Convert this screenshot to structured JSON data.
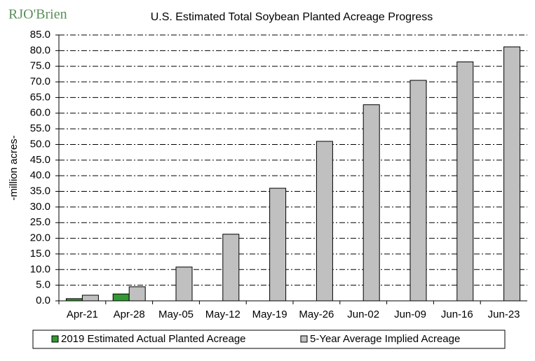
{
  "chart_data": {
    "type": "bar",
    "logo": "RJO'Brien",
    "title": "U.S. Estimated Total Soybean Planted Acreage Progress",
    "y_label": "-million acres-",
    "categories": [
      "Apr-21",
      "Apr-28",
      "May-05",
      "May-12",
      "May-19",
      "May-26",
      "Jun-02",
      "Jun-09",
      "Jun-16",
      "Jun-23"
    ],
    "series": [
      {
        "name": "2019 Estimated Actual Planted Acreage",
        "color": "#339933",
        "values": [
          0.7,
          2.2,
          null,
          null,
          null,
          null,
          null,
          null,
          null,
          null
        ]
      },
      {
        "name": "5-Year Average Implied Acreage",
        "color": "#c0c0c0",
        "values": [
          1.8,
          4.5,
          10.8,
          21.3,
          36.0,
          51.0,
          62.7,
          70.5,
          76.4,
          81.2
        ]
      }
    ],
    "ylim": [
      0,
      85
    ],
    "yticks": [
      {
        "value": 0,
        "label": "0.0"
      },
      {
        "value": 5,
        "label": "5.0"
      },
      {
        "value": 10,
        "label": "10.0"
      },
      {
        "value": 15,
        "label": "15.0"
      },
      {
        "value": 20,
        "label": "20.0"
      },
      {
        "value": 25,
        "label": "25.0"
      },
      {
        "value": 30,
        "label": "30.0"
      },
      {
        "value": 35,
        "label": "35.0"
      },
      {
        "value": 40,
        "label": "40.0"
      },
      {
        "value": 45,
        "label": "45.0"
      },
      {
        "value": 50,
        "label": "50.0"
      },
      {
        "value": 55,
        "label": "55.0"
      },
      {
        "value": 60,
        "label": "60.0"
      },
      {
        "value": 65,
        "label": "65.0"
      },
      {
        "value": 70,
        "label": "70.0"
      },
      {
        "value": 75,
        "label": "75.0"
      },
      {
        "value": 80,
        "label": "80.0"
      },
      {
        "value": 85,
        "label": "85.0"
      }
    ],
    "grid": true
  }
}
